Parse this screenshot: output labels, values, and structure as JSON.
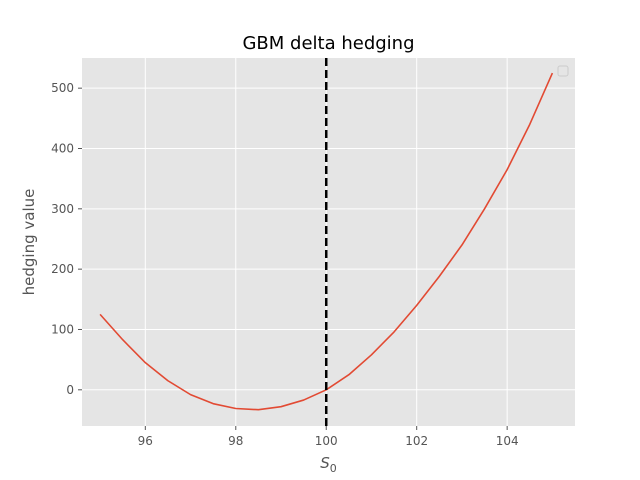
{
  "chart_data": {
    "type": "line",
    "title": "GBM delta hedging",
    "xlabel": "S",
    "xlabel_sub": "0",
    "ylabel": "hedging value",
    "xlim": [
      94.6,
      105.5
    ],
    "ylim": [
      -60,
      550
    ],
    "xticks": [
      96,
      98,
      100,
      102,
      104
    ],
    "xtick_labels": [
      "96",
      "98",
      "100",
      "102",
      "104"
    ],
    "yticks": [
      0,
      100,
      200,
      300,
      400,
      500
    ],
    "ytick_labels": [
      "0",
      "100",
      "200",
      "300",
      "400",
      "500"
    ],
    "grid": true,
    "legend": "top-right",
    "vline": {
      "x": 100,
      "color": "#000000",
      "style": "dashed"
    },
    "series": [
      {
        "color": "#e24a33",
        "x": [
          95,
          95.5,
          96,
          96.5,
          97,
          97.5,
          98,
          98.5,
          99,
          99.5,
          100,
          100.5,
          101,
          101.5,
          102,
          102.5,
          103,
          103.5,
          104,
          104.5,
          105
        ],
        "y": [
          125,
          83,
          45,
          15,
          -8,
          -23,
          -31,
          -33,
          -28,
          -17,
          0,
          25,
          58,
          96,
          140,
          188,
          240,
          300,
          365,
          440,
          525
        ]
      }
    ]
  }
}
